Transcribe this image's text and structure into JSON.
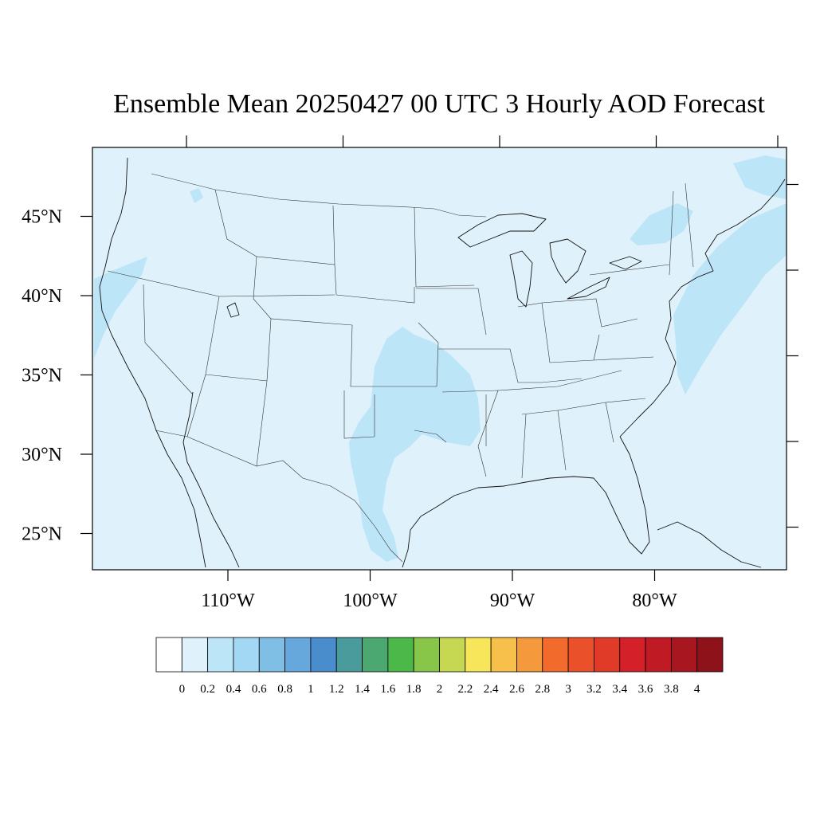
{
  "title": "Ensemble Mean 20250427 00 UTC 3 Hourly AOD Forecast",
  "map": {
    "background_color": "#dff2fb",
    "lon_range": [
      -119,
      -70
    ],
    "lat_range": [
      22.7,
      49.3
    ],
    "lon_ticks": [
      {
        "value": -110,
        "label": "110°W"
      },
      {
        "value": -100,
        "label": "100°W"
      },
      {
        "value": -90,
        "label": "90°W"
      },
      {
        "value": -80,
        "label": "80°W"
      }
    ],
    "lat_ticks": [
      {
        "value": 45,
        "label": "45°N"
      },
      {
        "value": 40,
        "label": "40°N"
      },
      {
        "value": 35,
        "label": "35°N"
      },
      {
        "value": 30,
        "label": "30°N"
      },
      {
        "value": 25,
        "label": "25°N"
      }
    ]
  },
  "colorbar": {
    "labels": [
      "0",
      "0.2",
      "0.4",
      "0.6",
      "0.8",
      "1",
      "1.2",
      "1.4",
      "1.6",
      "1.8",
      "2",
      "2.2",
      "2.4",
      "2.6",
      "2.8",
      "3",
      "3.2",
      "3.4",
      "3.6",
      "3.8",
      "4"
    ],
    "colors": [
      "#ffffff",
      "#dff2fb",
      "#bde5f8",
      "#a3d8f4",
      "#7fbfe6",
      "#67a8dc",
      "#4a8dcc",
      "#4a9c9c",
      "#4aa870",
      "#4cb84a",
      "#88c64a",
      "#c6d852",
      "#f8e65a",
      "#f7c04a",
      "#f59a3c",
      "#f26a2c",
      "#ea502a",
      "#e03a28",
      "#d42028",
      "#c01a24",
      "#a81620",
      "#8e121a"
    ]
  },
  "chart_data": {
    "type": "heatmap",
    "title": "Ensemble Mean 20250427 00 UTC 3 Hourly AOD Forecast",
    "xlabel": "",
    "ylabel": "",
    "x_ticks": [
      "110°W",
      "100°W",
      "90°W",
      "80°W"
    ],
    "y_ticks": [
      "45°N",
      "40°N",
      "35°N",
      "30°N",
      "25°N"
    ],
    "levels": [
      0,
      0.2,
      0.4,
      0.6,
      0.8,
      1,
      1.2,
      1.4,
      1.6,
      1.8,
      2,
      2.2,
      2.4,
      2.6,
      2.8,
      3,
      3.2,
      3.4,
      3.6,
      3.8,
      4
    ],
    "background_value_range": [
      0.2,
      0.4
    ],
    "regions": [
      {
        "area": "Oklahoma / Kansas / Texas / Arkansas",
        "value_range": [
          0.4,
          0.6
        ]
      },
      {
        "area": "Atlantic coast off the Northeast",
        "value_range": [
          0.4,
          0.6
        ]
      },
      {
        "area": "Southern Quebec / New England",
        "value_range": [
          0.4,
          0.6
        ]
      },
      {
        "area": "Pacific coast near Oregon / California",
        "value_range": [
          0.4,
          0.6
        ]
      },
      {
        "area": "Gulf of St. Lawrence",
        "value_range": [
          0.4,
          0.6
        ]
      }
    ]
  }
}
